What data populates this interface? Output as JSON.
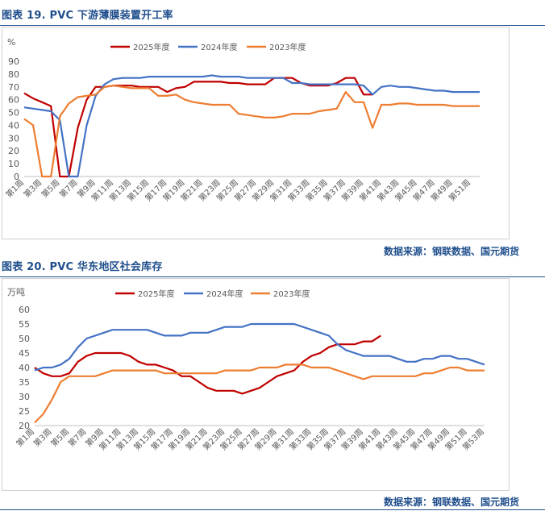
{
  "figures": [
    {
      "title": "图表 19.  PVC 下游薄膜装置开工率",
      "source": "数据来源：钢联数据、国元期货"
    },
    {
      "title": "图表 20.  PVC 华东地区社会库存",
      "source": "数据来源：钢联数据、国元期货"
    }
  ],
  "chart_data": [
    {
      "type": "line",
      "unit_label": "%",
      "ylim": [
        0,
        90
      ],
      "yticks": [
        0,
        10,
        20,
        30,
        40,
        50,
        60,
        70,
        80,
        90
      ],
      "grid": false,
      "legend_position": "top",
      "x": [
        "第1周",
        "第2周",
        "第3周",
        "第4周",
        "第5周",
        "第6周",
        "第7周",
        "第8周",
        "第9周",
        "第10周",
        "第11周",
        "第12周",
        "第13周",
        "第14周",
        "第15周",
        "第16周",
        "第17周",
        "第18周",
        "第19周",
        "第20周",
        "第21周",
        "第22周",
        "第23周",
        "第24周",
        "第25周",
        "第26周",
        "第27周",
        "第28周",
        "第29周",
        "第30周",
        "第31周",
        "第32周",
        "第33周",
        "第34周",
        "第35周",
        "第36周",
        "第37周",
        "第38周",
        "第39周",
        "第40周",
        "第41周",
        "第42周",
        "第43周",
        "第44周",
        "第45周",
        "第46周",
        "第47周",
        "第48周",
        "第49周",
        "第50周",
        "第51周",
        "第52周"
      ],
      "xtick_labels": [
        "第1周",
        "第3周",
        "第5周",
        "第7周",
        "第9周",
        "第11周",
        "第13周",
        "第15周",
        "第17周",
        "第19周",
        "第21周",
        "第23周",
        "第25周",
        "第27周",
        "第29周",
        "第31周",
        "第33周",
        "第35周",
        "第37周",
        "第39周",
        "第41周",
        "第43周",
        "第45周",
        "第47周",
        "第49周",
        "第51周"
      ],
      "series": [
        {
          "name": "2025年度",
          "color": "#c00000",
          "values": [
            65,
            61,
            58,
            55,
            0,
            0,
            38,
            60,
            70,
            70,
            71,
            71,
            71,
            70,
            70,
            70,
            66,
            69,
            70,
            74,
            74,
            74,
            74,
            73,
            73,
            72,
            72,
            72,
            77,
            77,
            77,
            73,
            71,
            71,
            71,
            73,
            77,
            77,
            64,
            64,
            null,
            null,
            null,
            null,
            null,
            null,
            null,
            null,
            null,
            null,
            null,
            null
          ]
        },
        {
          "name": "2024年度",
          "color": "#4472c4",
          "values": [
            54,
            53,
            52,
            51,
            44,
            0,
            0,
            40,
            63,
            72,
            76,
            77,
            77,
            77,
            78,
            78,
            78,
            78,
            78,
            78,
            78,
            79,
            78,
            78,
            78,
            77,
            77,
            77,
            77,
            77,
            73,
            73,
            72,
            72,
            72,
            72,
            72,
            72,
            71,
            64,
            70,
            71,
            70,
            70,
            69,
            68,
            67,
            67,
            66,
            66,
            66,
            66
          ]
        },
        {
          "name": "2023年度",
          "color": "#ed7d31",
          "values": [
            45,
            40,
            0,
            0,
            47,
            57,
            62,
            63,
            64,
            70,
            71,
            70,
            69,
            69,
            69,
            63,
            63,
            64,
            60,
            58,
            57,
            56,
            56,
            56,
            49,
            48,
            47,
            46,
            46,
            47,
            49,
            49,
            49,
            51,
            52,
            53,
            66,
            58,
            58,
            38,
            56,
            56,
            57,
            57,
            56,
            56,
            56,
            56,
            55,
            55,
            55,
            55
          ]
        }
      ]
    },
    {
      "type": "line",
      "unit_label": "万吨",
      "ylim": [
        20,
        60
      ],
      "yticks": [
        20,
        25,
        30,
        35,
        40,
        45,
        50,
        55,
        60
      ],
      "grid": false,
      "legend_position": "top",
      "x": [
        "第1周",
        "第2周",
        "第3周",
        "第4周",
        "第5周",
        "第6周",
        "第7周",
        "第8周",
        "第9周",
        "第10周",
        "第11周",
        "第12周",
        "第13周",
        "第14周",
        "第15周",
        "第16周",
        "第17周",
        "第18周",
        "第19周",
        "第20周",
        "第21周",
        "第22周",
        "第23周",
        "第24周",
        "第25周",
        "第26周",
        "第27周",
        "第28周",
        "第29周",
        "第30周",
        "第31周",
        "第32周",
        "第33周",
        "第34周",
        "第35周",
        "第36周",
        "第37周",
        "第38周",
        "第39周",
        "第40周",
        "第41周",
        "第42周",
        "第43周",
        "第44周",
        "第45周",
        "第46周",
        "第47周",
        "第48周",
        "第49周",
        "第50周",
        "第51周",
        "第52周",
        "第53周"
      ],
      "xtick_labels": [
        "第1周",
        "第3周",
        "第5周",
        "第7周",
        "第9周",
        "第11周",
        "第13周",
        "第15周",
        "第17周",
        "第19周",
        "第21周",
        "第23周",
        "第25周",
        "第27周",
        "第29周",
        "第31周",
        "第33周",
        "第35周",
        "第37周",
        "第39周",
        "第41周",
        "第43周",
        "第45周",
        "第47周",
        "第49周",
        "第51周",
        "第53周"
      ],
      "series": [
        {
          "name": "2025年度",
          "color": "#c00000",
          "values": [
            40,
            38,
            37,
            37,
            38,
            42,
            44,
            45,
            45,
            45,
            45,
            44,
            42,
            41,
            41,
            40,
            39,
            37,
            37,
            35,
            33,
            32,
            32,
            32,
            31,
            32,
            33,
            35,
            37,
            38,
            39,
            42,
            44,
            45,
            47,
            48,
            48,
            48,
            49,
            49,
            51,
            null,
            null,
            null,
            null,
            null,
            null,
            null,
            null,
            null,
            null,
            null,
            null
          ]
        },
        {
          "name": "2024年度",
          "color": "#4472c4",
          "values": [
            39,
            40,
            40,
            41,
            43,
            47,
            50,
            51,
            52,
            53,
            53,
            53,
            53,
            53,
            52,
            51,
            51,
            51,
            52,
            52,
            52,
            53,
            54,
            54,
            54,
            55,
            55,
            55,
            55,
            55,
            55,
            54,
            53,
            52,
            51,
            48,
            46,
            45,
            44,
            44,
            44,
            44,
            43,
            42,
            42,
            43,
            43,
            44,
            44,
            43,
            43,
            42,
            41
          ]
        },
        {
          "name": "2023年度",
          "color": "#ed7d31",
          "values": [
            21,
            24,
            29,
            35,
            37,
            37,
            37,
            37,
            38,
            39,
            39,
            39,
            39,
            39,
            39,
            38,
            38,
            38,
            38,
            38,
            38,
            38,
            39,
            39,
            39,
            39,
            40,
            40,
            40,
            41,
            41,
            41,
            40,
            40,
            40,
            39,
            38,
            37,
            36,
            37,
            37,
            37,
            37,
            37,
            37,
            38,
            38,
            39,
            40,
            40,
            39,
            39,
            39
          ]
        }
      ]
    }
  ]
}
